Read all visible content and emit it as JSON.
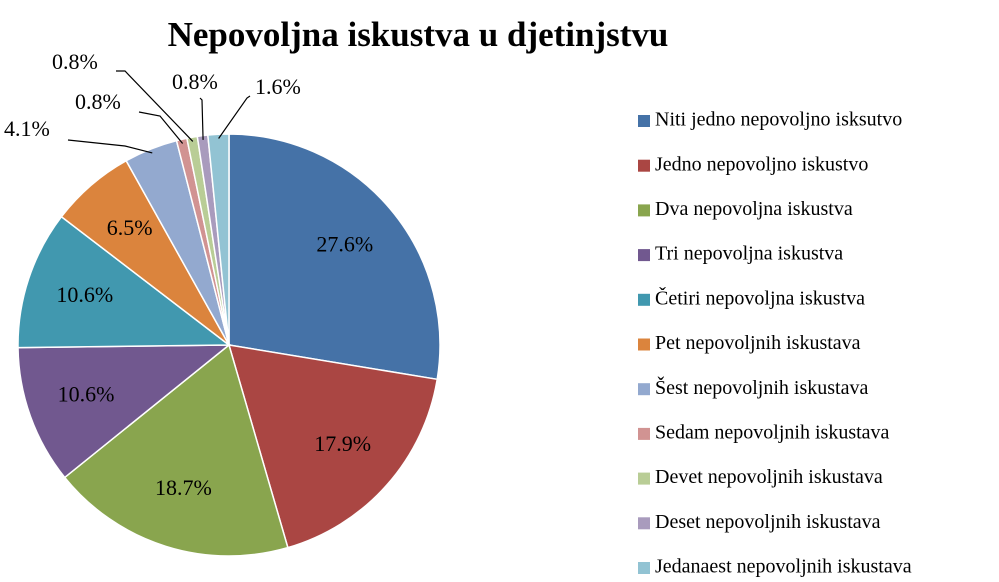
{
  "chart_data": {
    "type": "pie",
    "title": "Nepovoljna iskustva u djetinjstvu",
    "categories": [
      "Niti jedno nepovoljno isksutvo",
      "Jedno nepovoljno iskustvo",
      "Dva nepovoljna iskustva",
      "Tri nepovoljna iskustva",
      "Četiri nepovoljna iskustva",
      "Pet nepovoljnih iskustava",
      "Šest nepovoljnih iskustava",
      "Sedam nepovoljnih iskustava",
      "Devet nepovoljnih iskustava",
      "Deset nepovoljnih iskustava",
      "Jedanaest nepovoljnih iskustava"
    ],
    "values": [
      27.6,
      17.9,
      18.7,
      10.6,
      10.6,
      6.5,
      4.1,
      0.8,
      0.8,
      0.8,
      1.6
    ],
    "value_labels": [
      "27.6%",
      "17.9%",
      "18.7%",
      "10.6%",
      "10.6%",
      "6.5%",
      "4.1%",
      "0.8%",
      "0.8%",
      "0.8%",
      "1.6%"
    ],
    "colors": [
      "#4572A7",
      "#AA4643",
      "#89A54E",
      "#71588F",
      "#4198AF",
      "#DB843D",
      "#93A9CF",
      "#D19392",
      "#B9CD96",
      "#A99BBD",
      "#92C3D3"
    ],
    "legend": "right"
  }
}
